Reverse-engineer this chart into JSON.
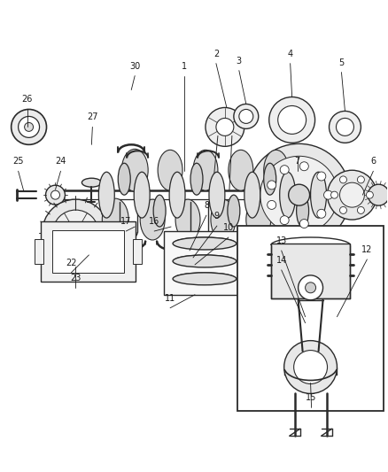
{
  "bg_color": "#ffffff",
  "fig_width": 4.38,
  "fig_height": 5.33,
  "dpi": 100,
  "line_color": "#2a2a2a",
  "label_color": "#1a1a1a",
  "label_fontsize": 7.0,
  "lw": 0.9
}
